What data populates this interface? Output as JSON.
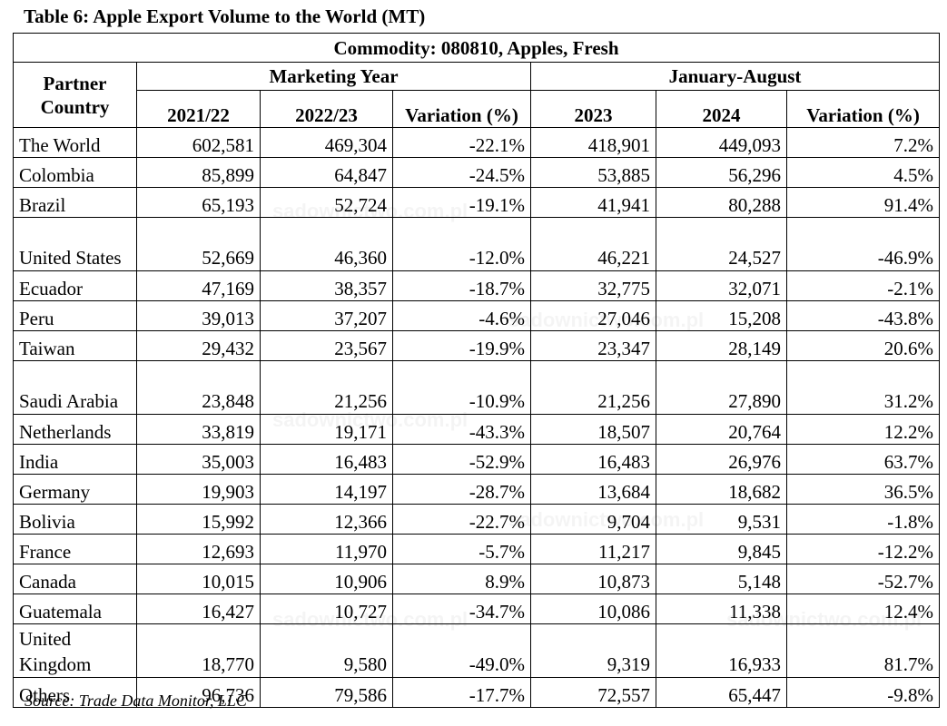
{
  "caption": "Table 6: Apple Export Volume to the World (MT)",
  "commodity": "Commodity: 080810, Apples, Fresh",
  "headers": {
    "partner": "Partner Country",
    "marketing_year": "Marketing Year",
    "jan_aug": "January-August",
    "my_col1": "2021/22",
    "my_col2": "2022/23",
    "my_var": "Variation (%)",
    "ja_col1": "2023",
    "ja_col2": "2024",
    "ja_var": "Variation (%)"
  },
  "rows": [
    {
      "country": "The World",
      "c1": "602,581",
      "c2": "469,304",
      "v1": "-22.1%",
      "c3": "418,901",
      "c4": "449,093",
      "v2": "7.2%"
    },
    {
      "country": "Colombia",
      "c1": "85,899",
      "c2": "64,847",
      "v1": "-24.5%",
      "c3": "53,885",
      "c4": "56,296",
      "v2": "4.5%"
    },
    {
      "country": "Brazil",
      "c1": "65,193",
      "c2": "52,724",
      "v1": "-19.1%",
      "c3": "41,941",
      "c4": "80,288",
      "v2": "91.4%"
    },
    {
      "country": "United States",
      "c1": "52,669",
      "c2": "46,360",
      "v1": "-12.0%",
      "c3": "46,221",
      "c4": "24,527",
      "v2": "-46.9%"
    },
    {
      "country": "Ecuador",
      "c1": "47,169",
      "c2": "38,357",
      "v1": "-18.7%",
      "c3": "32,775",
      "c4": "32,071",
      "v2": "-2.1%"
    },
    {
      "country": "Peru",
      "c1": "39,013",
      "c2": "37,207",
      "v1": "-4.6%",
      "c3": "27,046",
      "c4": "15,208",
      "v2": "-43.8%"
    },
    {
      "country": "Taiwan",
      "c1": "29,432",
      "c2": "23,567",
      "v1": "-19.9%",
      "c3": "23,347",
      "c4": "28,149",
      "v2": "20.6%"
    },
    {
      "country": "Saudi Arabia",
      "c1": "23,848",
      "c2": "21,256",
      "v1": "-10.9%",
      "c3": "21,256",
      "c4": "27,890",
      "v2": "31.2%"
    },
    {
      "country": "Netherlands",
      "c1": "33,819",
      "c2": "19,171",
      "v1": "-43.3%",
      "c3": "18,507",
      "c4": "20,764",
      "v2": "12.2%"
    },
    {
      "country": "India",
      "c1": "35,003",
      "c2": "16,483",
      "v1": "-52.9%",
      "c3": "16,483",
      "c4": "26,976",
      "v2": "63.7%"
    },
    {
      "country": "Germany",
      "c1": "19,903",
      "c2": "14,197",
      "v1": "-28.7%",
      "c3": "13,684",
      "c4": "18,682",
      "v2": "36.5%"
    },
    {
      "country": "Bolivia",
      "c1": "15,992",
      "c2": "12,366",
      "v1": "-22.7%",
      "c3": "9,704",
      "c4": "9,531",
      "v2": "-1.8%"
    },
    {
      "country": "France",
      "c1": "12,693",
      "c2": "11,970",
      "v1": "-5.7%",
      "c3": "11,217",
      "c4": "9,845",
      "v2": "-12.2%"
    },
    {
      "country": "Canada",
      "c1": "10,015",
      "c2": "10,906",
      "v1": "8.9%",
      "c3": "10,873",
      "c4": "5,148",
      "v2": "-52.7%"
    },
    {
      "country": "Guatemala",
      "c1": "16,427",
      "c2": "10,727",
      "v1": "-34.7%",
      "c3": "10,086",
      "c4": "11,338",
      "v2": "12.4%"
    },
    {
      "country": "United Kingdom",
      "c1": "18,770",
      "c2": "9,580",
      "v1": "-49.0%",
      "c3": "9,319",
      "c4": "16,933",
      "v2": "81.7%"
    },
    {
      "country": "Others",
      "c1": "96,736",
      "c2": "79,586",
      "v1": "-17.7%",
      "c3": "72,557",
      "c4": "65,447",
      "v2": "-9.8%"
    }
  ],
  "source": "Source: Trade Data Monitor, LLC",
  "watermark": "sadownictwo.com.pl"
}
